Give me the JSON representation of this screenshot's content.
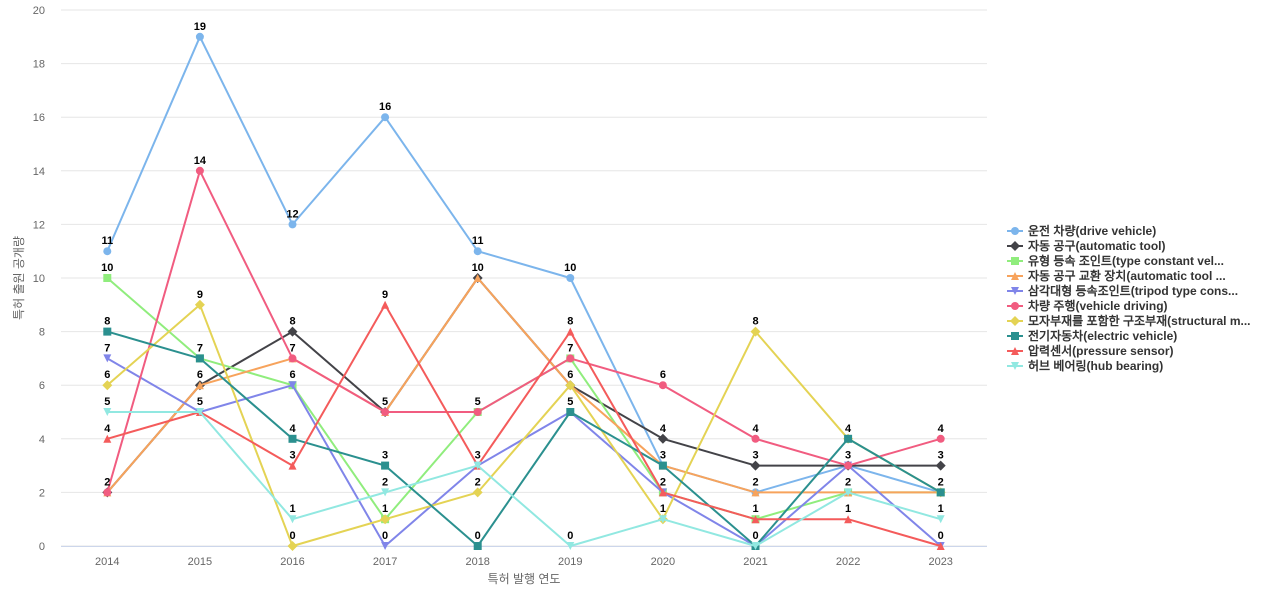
{
  "chart_data": {
    "type": "line",
    "title": "",
    "xlabel": "특허 발행 연도",
    "ylabel": "특허 출원 공개량",
    "ylim": [
      0,
      20
    ],
    "yticks": [
      0,
      2,
      4,
      6,
      8,
      10,
      12,
      14,
      16,
      18,
      20
    ],
    "grid": true,
    "legend_position": "right",
    "categories": [
      "2014",
      "2015",
      "2016",
      "2017",
      "2018",
      "2019",
      "2020",
      "2021",
      "2022",
      "2023"
    ],
    "series": [
      {
        "name": "운전 차량(drive vehicle)",
        "marker": "circle",
        "color": "#7cb5ec",
        "values": [
          11,
          19,
          12,
          16,
          11,
          10,
          3,
          2,
          3,
          2
        ]
      },
      {
        "name": "자동 공구(automatic tool)",
        "marker": "diamond",
        "color": "#434348",
        "values": [
          2,
          6,
          8,
          5,
          10,
          6,
          4,
          3,
          3,
          3
        ]
      },
      {
        "name": "유형 등속 조인트(type constant vel...",
        "marker": "square",
        "color": "#90ed7d",
        "values": [
          10,
          7,
          6,
          1,
          5,
          7,
          2,
          1,
          2,
          2
        ]
      },
      {
        "name": "자동 공구 교환 장치(automatic tool ...",
        "marker": "triangle",
        "color": "#f7a35c",
        "values": [
          2,
          6,
          7,
          5,
          10,
          6,
          3,
          2,
          2,
          2
        ]
      },
      {
        "name": "삼각대형 등속조인트(tripod type cons...",
        "marker": "triangle-down",
        "color": "#8085e9",
        "values": [
          7,
          5,
          6,
          0,
          3,
          5,
          2,
          0,
          3,
          0
        ]
      },
      {
        "name": "차량 주행(vehicle driving)",
        "marker": "circle",
        "color": "#f15c80",
        "values": [
          2,
          14,
          7,
          5,
          5,
          7,
          6,
          4,
          3,
          4
        ]
      },
      {
        "name": "모자부재를 포함한 구조부재(structural m...",
        "marker": "diamond",
        "color": "#e4d354",
        "values": [
          6,
          9,
          0,
          1,
          2,
          6,
          1,
          8,
          4,
          2
        ]
      },
      {
        "name": "전기자동차(electric vehicle)",
        "marker": "square",
        "color": "#2b908f",
        "values": [
          8,
          7,
          4,
          3,
          0,
          5,
          3,
          0,
          4,
          2
        ]
      },
      {
        "name": "압력센서(pressure sensor)",
        "marker": "triangle",
        "color": "#f45b5b",
        "values": [
          4,
          5,
          3,
          9,
          3,
          8,
          2,
          1,
          1,
          0
        ]
      },
      {
        "name": "허브 베어링(hub bearing)",
        "marker": "triangle-down",
        "color": "#91e8e1",
        "values": [
          5,
          5,
          1,
          2,
          3,
          0,
          1,
          0,
          2,
          1
        ]
      }
    ],
    "data_labels": [
      {
        "x": "2014",
        "y": 11,
        "text": "11"
      },
      {
        "x": "2014",
        "y": 10,
        "text": "10"
      },
      {
        "x": "2014",
        "y": 8,
        "text": "8"
      },
      {
        "x": "2014",
        "y": 7,
        "text": "7"
      },
      {
        "x": "2014",
        "y": 6,
        "text": "6"
      },
      {
        "x": "2014",
        "y": 5,
        "text": "5"
      },
      {
        "x": "2014",
        "y": 4,
        "text": "4"
      },
      {
        "x": "2014",
        "y": 2,
        "text": "2"
      },
      {
        "x": "2015",
        "y": 19,
        "text": "19"
      },
      {
        "x": "2015",
        "y": 14,
        "text": "14"
      },
      {
        "x": "2015",
        "y": 9,
        "text": "9"
      },
      {
        "x": "2015",
        "y": 7,
        "text": "7"
      },
      {
        "x": "2015",
        "y": 6,
        "text": "6"
      },
      {
        "x": "2015",
        "y": 5,
        "text": "5"
      },
      {
        "x": "2016",
        "y": 12,
        "text": "12"
      },
      {
        "x": "2016",
        "y": 8,
        "text": "8"
      },
      {
        "x": "2016",
        "y": 7,
        "text": "7"
      },
      {
        "x": "2016",
        "y": 6,
        "text": "6"
      },
      {
        "x": "2016",
        "y": 4,
        "text": "4"
      },
      {
        "x": "2016",
        "y": 3,
        "text": "3"
      },
      {
        "x": "2016",
        "y": 1,
        "text": "1"
      },
      {
        "x": "2016",
        "y": 0,
        "text": "0"
      },
      {
        "x": "2017",
        "y": 16,
        "text": "16"
      },
      {
        "x": "2017",
        "y": 9,
        "text": "9"
      },
      {
        "x": "2017",
        "y": 5,
        "text": "5"
      },
      {
        "x": "2017",
        "y": 3,
        "text": "3"
      },
      {
        "x": "2017",
        "y": 2,
        "text": "2"
      },
      {
        "x": "2017",
        "y": 1,
        "text": "1"
      },
      {
        "x": "2017",
        "y": 0,
        "text": "0"
      },
      {
        "x": "2018",
        "y": 11,
        "text": "11"
      },
      {
        "x": "2018",
        "y": 10,
        "text": "10"
      },
      {
        "x": "2018",
        "y": 5,
        "text": "5"
      },
      {
        "x": "2018",
        "y": 3,
        "text": "3"
      },
      {
        "x": "2018",
        "y": 2,
        "text": "2"
      },
      {
        "x": "2018",
        "y": 0,
        "text": "0"
      },
      {
        "x": "2019",
        "y": 10,
        "text": "10"
      },
      {
        "x": "2019",
        "y": 8,
        "text": "8"
      },
      {
        "x": "2019",
        "y": 7,
        "text": "7"
      },
      {
        "x": "2019",
        "y": 6,
        "text": "6"
      },
      {
        "x": "2019",
        "y": 5,
        "text": "5"
      },
      {
        "x": "2019",
        "y": 0,
        "text": "0"
      },
      {
        "x": "2020",
        "y": 6,
        "text": "6"
      },
      {
        "x": "2020",
        "y": 4,
        "text": "4"
      },
      {
        "x": "2020",
        "y": 3,
        "text": "3"
      },
      {
        "x": "2020",
        "y": 2,
        "text": "2"
      },
      {
        "x": "2020",
        "y": 1,
        "text": "1"
      },
      {
        "x": "2021",
        "y": 8,
        "text": "8"
      },
      {
        "x": "2021",
        "y": 4,
        "text": "4"
      },
      {
        "x": "2021",
        "y": 3,
        "text": "3"
      },
      {
        "x": "2021",
        "y": 2,
        "text": "2"
      },
      {
        "x": "2021",
        "y": 1,
        "text": "1"
      },
      {
        "x": "2021",
        "y": 0,
        "text": "0"
      },
      {
        "x": "2022",
        "y": 4,
        "text": "4"
      },
      {
        "x": "2022",
        "y": 3,
        "text": "3"
      },
      {
        "x": "2022",
        "y": 2,
        "text": "2"
      },
      {
        "x": "2022",
        "y": 1,
        "text": "1"
      },
      {
        "x": "2023",
        "y": 4,
        "text": "4"
      },
      {
        "x": "2023",
        "y": 3,
        "text": "3"
      },
      {
        "x": "2023",
        "y": 2,
        "text": "2"
      },
      {
        "x": "2023",
        "y": 1,
        "text": "1"
      },
      {
        "x": "2023",
        "y": 0,
        "text": "0"
      }
    ]
  }
}
